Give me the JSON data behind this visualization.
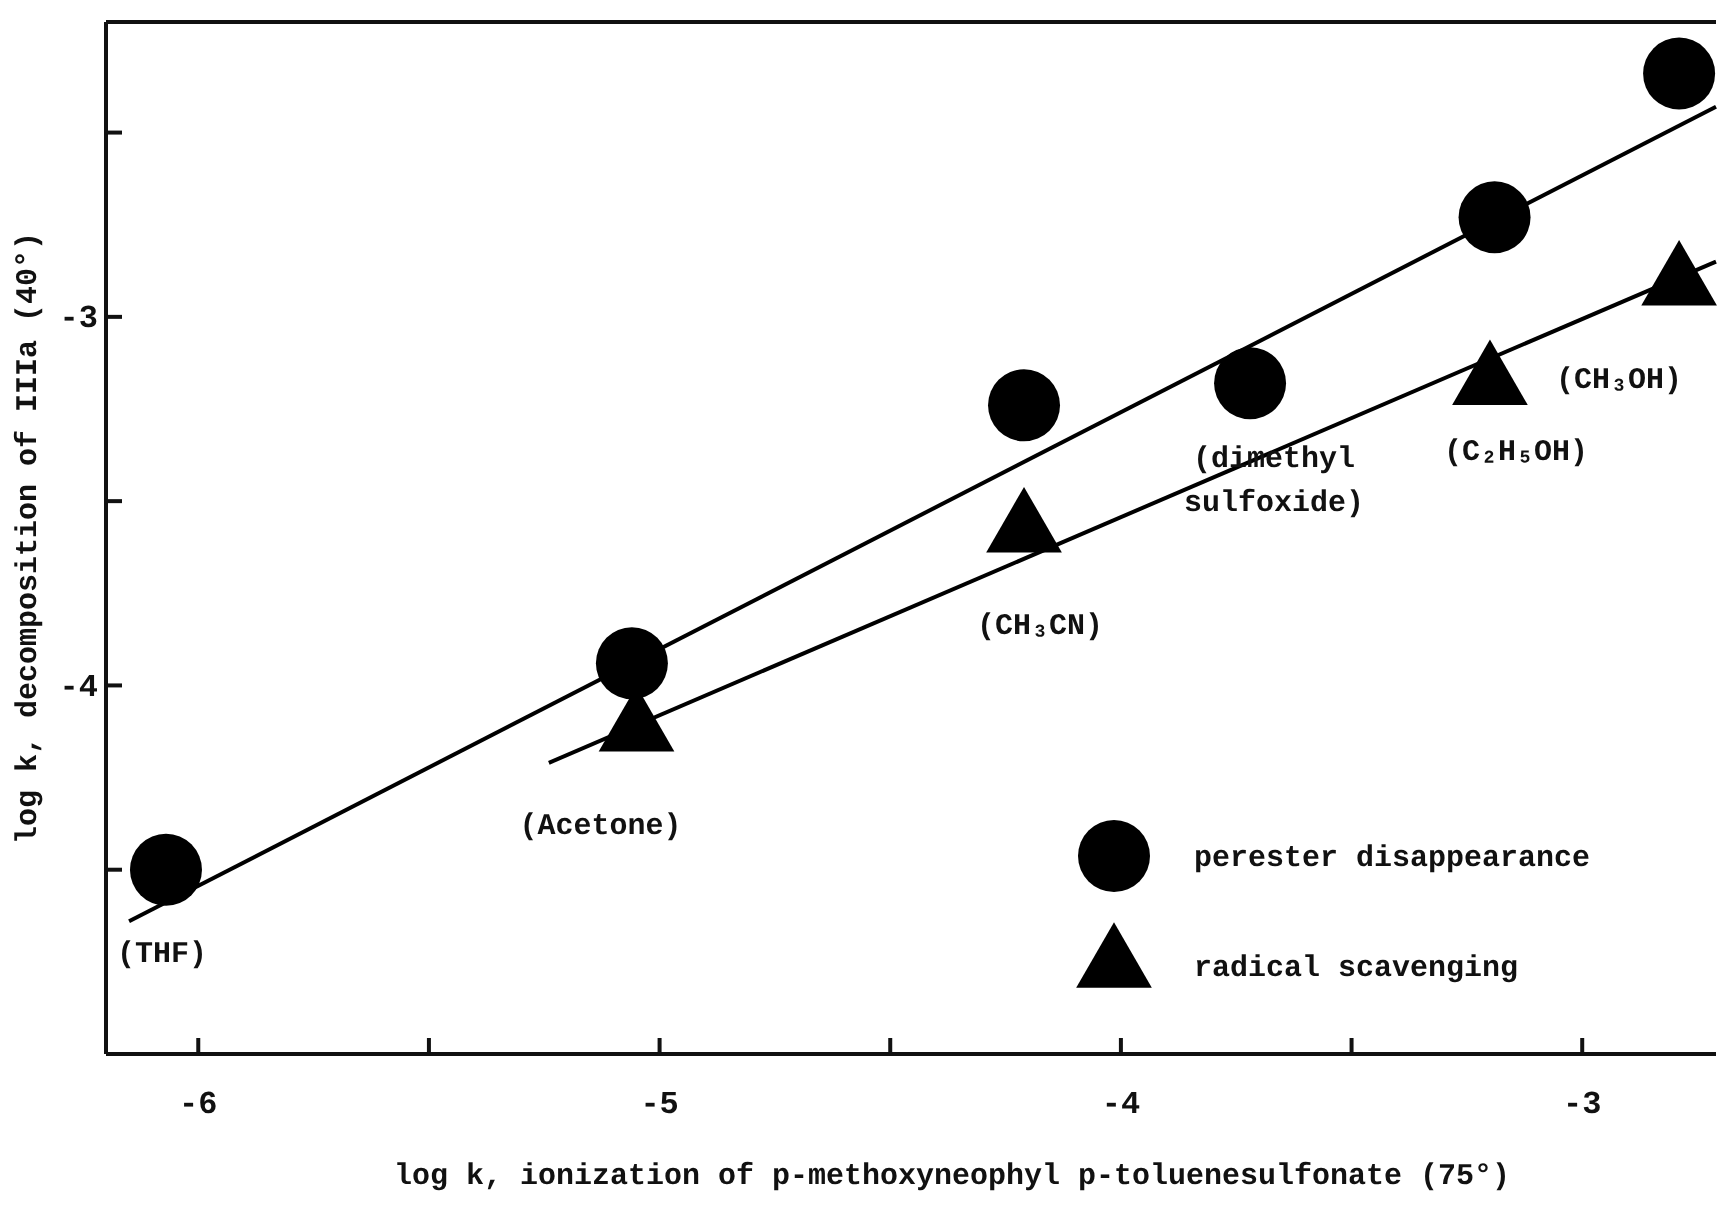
{
  "chart_data": {
    "type": "scatter",
    "xlabel": "log k, ionization of p-methoxyneophyl p-toluenesulfonate (75°)",
    "ylabel": "log k, decomposition of IIIa (40°)",
    "xlim": [
      -6.2,
      -2.71
    ],
    "ylim": [
      -5.0,
      -2.2
    ],
    "xticks": [
      -6,
      {
        "value": -5.5,
        "label": null
      },
      -5,
      {
        "value": -4.5,
        "label": null
      },
      -4,
      {
        "value": -3.5,
        "label": null
      },
      -3
    ],
    "yticks": [
      {
        "value": -4.5,
        "label": null
      },
      -4,
      {
        "value": -3.5,
        "label": null
      },
      -3,
      {
        "value": -2.5,
        "label": null
      }
    ],
    "grid": false,
    "legend": "bottom right",
    "series": [
      {
        "name": "perester disappearance",
        "marker": "circle",
        "color": "#000000",
        "x": [
          -6.07,
          -5.06,
          -4.21,
          -3.72,
          -3.19,
          -2.79
        ],
        "values": [
          -4.5,
          -3.94,
          -3.24,
          -3.18,
          -2.73,
          -2.34
        ]
      },
      {
        "name": "radical scavenging",
        "marker": "triangle",
        "color": "#000000",
        "x": [
          -5.05,
          -4.21,
          -3.2,
          -2.79
        ],
        "values": [
          -4.12,
          -3.58,
          -3.18,
          -2.91
        ]
      },
      {
        "type": "line",
        "marker": "none",
        "line_style": "solid",
        "color": "#000000",
        "x": [
          -6.15,
          -2.71
        ],
        "values": [
          -4.64,
          -2.43
        ]
      },
      {
        "type": "line",
        "marker": "none",
        "line_style": "solid",
        "color": "#000000",
        "x": [
          -5.24,
          -2.71
        ],
        "values": [
          -4.21,
          -2.85
        ]
      }
    ],
    "annotations": [
      {
        "text": "(THF)",
        "x": -6.07,
        "y": -4.5
      },
      {
        "text": "(Acetone)",
        "x": -5.05,
        "y": -4.12
      },
      "(CH₃CN)",
      {
        "text": "(dimethyl\nsulfoxide)",
        "x": -3.72,
        "y": -3.18
      },
      "(C₂H₅OH)",
      {
        "text": "(CH₃OH)",
        "x": -2.79,
        "y": -2.91
      }
    ]
  }
}
